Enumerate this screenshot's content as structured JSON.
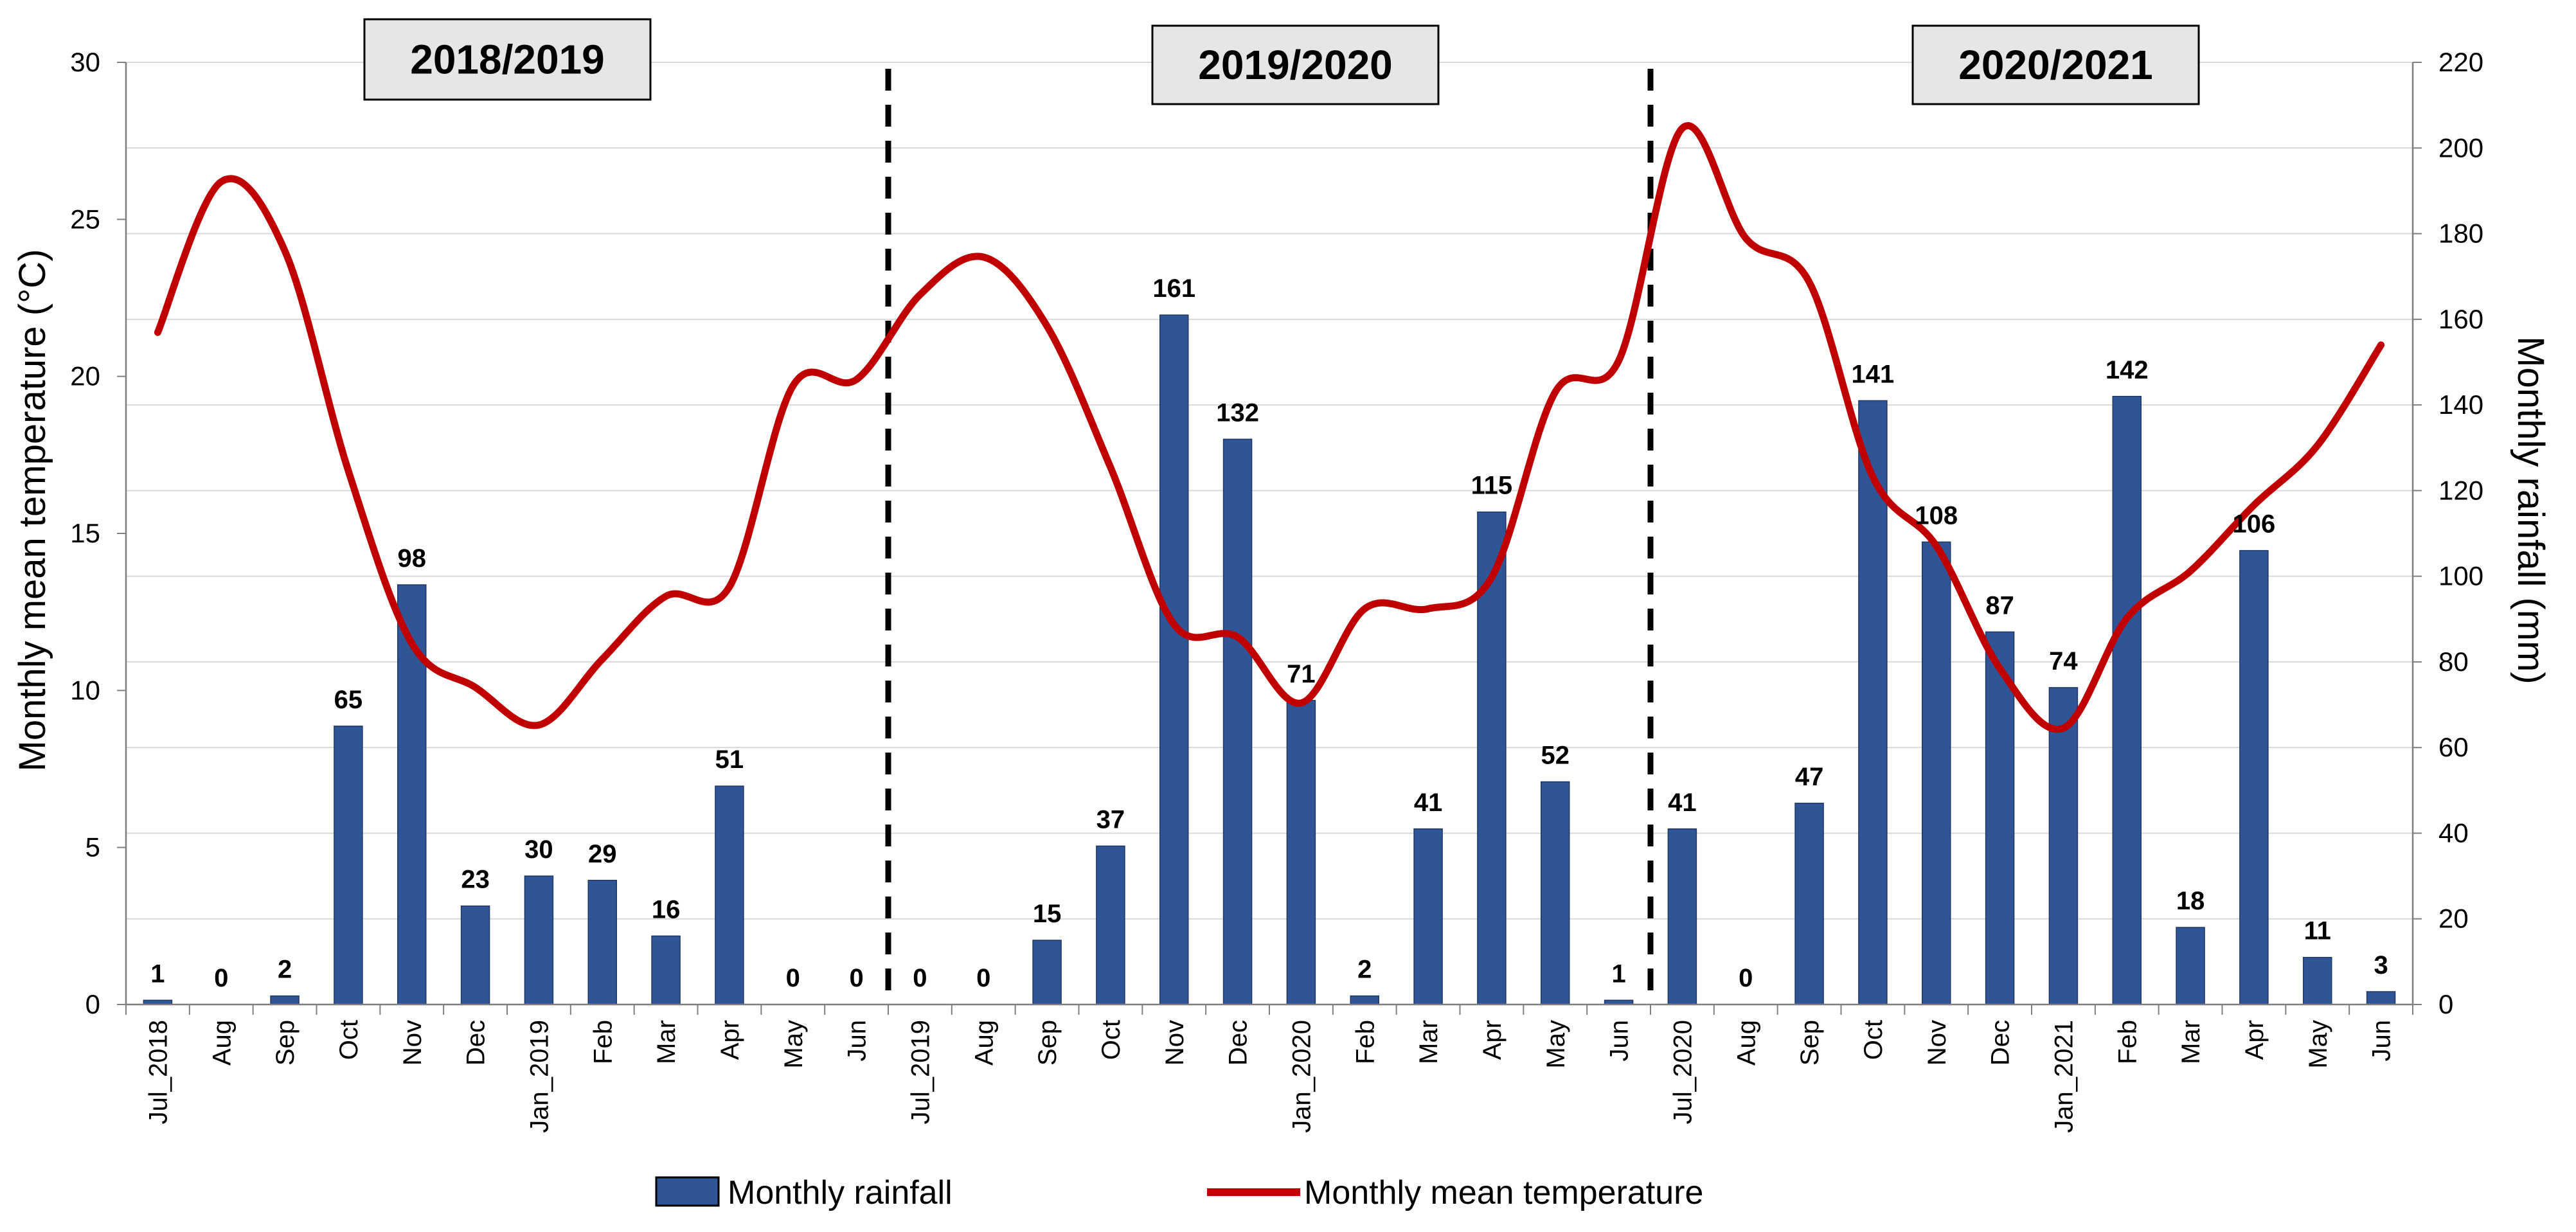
{
  "chart_data": {
    "type": "bar+line",
    "categories": [
      "Jul_2018",
      "Aug",
      "Sep",
      "Oct",
      "Nov",
      "Dec",
      "Jan_2019",
      "Feb",
      "Mar",
      "Apr",
      "May",
      "Jun",
      "Jul_2019",
      "Aug",
      "Sep",
      "Oct",
      "Nov",
      "Dec",
      "Jan_2020",
      "Feb",
      "Mar",
      "Apr",
      "May",
      "Jun",
      "Jul_2020",
      "Aug",
      "Sep",
      "Oct",
      "Nov",
      "Dec",
      "Jan_2021",
      "Feb",
      "Mar",
      "Apr",
      "May",
      "Jun"
    ],
    "series": [
      {
        "name": "Monthly rainfall",
        "type": "bar",
        "axis": "right",
        "color": "#2F5597",
        "values": [
          1,
          0,
          2,
          65,
          98,
          23,
          30,
          29,
          16,
          51,
          0,
          0,
          0,
          0,
          15,
          37,
          161,
          132,
          71,
          2,
          41,
          115,
          52,
          1,
          41,
          0,
          47,
          141,
          108,
          87,
          74,
          142,
          18,
          106,
          11,
          3
        ],
        "labels": [
          "1",
          "0",
          "2",
          "65",
          "98",
          "23",
          "30",
          "29",
          "16",
          "51",
          "0",
          "0",
          "0",
          "0",
          "15",
          "37",
          "161",
          "132",
          "71",
          "2",
          "41",
          "115",
          "52",
          "1",
          "41",
          "0",
          "47",
          "141",
          "108",
          "87",
          "74",
          "142",
          "18",
          "106",
          "11",
          "3"
        ]
      },
      {
        "name": "Monthly mean temperature",
        "type": "line",
        "axis": "left",
        "color": "#C00000",
        "values": [
          21.4,
          26.2,
          24,
          17,
          11.5,
          10.1,
          8.9,
          11,
          13,
          13.3,
          19.7,
          19.9,
          22.6,
          23.8,
          21.6,
          17.1,
          12.1,
          11.7,
          9.6,
          12.6,
          12.6,
          13.6,
          19.5,
          20.5,
          27.9,
          24.4,
          23,
          16.8,
          14.6,
          10.7,
          8.8,
          12.3,
          13.8,
          15.9,
          17.8,
          21
        ]
      }
    ],
    "y_left": {
      "label": "Monthly mean temperature (°C)",
      "range": [
        0,
        30
      ],
      "ticks": [
        "0",
        "5",
        "10",
        "15",
        "20",
        "25",
        "30"
      ]
    },
    "y_right": {
      "label": "Monthly rainfall (mm)",
      "range": [
        0,
        220
      ],
      "ticks": [
        "0",
        "20",
        "40",
        "60",
        "80",
        "100",
        "120",
        "140",
        "160",
        "180",
        "200",
        "220"
      ]
    },
    "seasons": [
      "2018/2019",
      "2019/2020",
      "2020/2021"
    ],
    "gridlines": true,
    "legend_position": "bottom"
  }
}
